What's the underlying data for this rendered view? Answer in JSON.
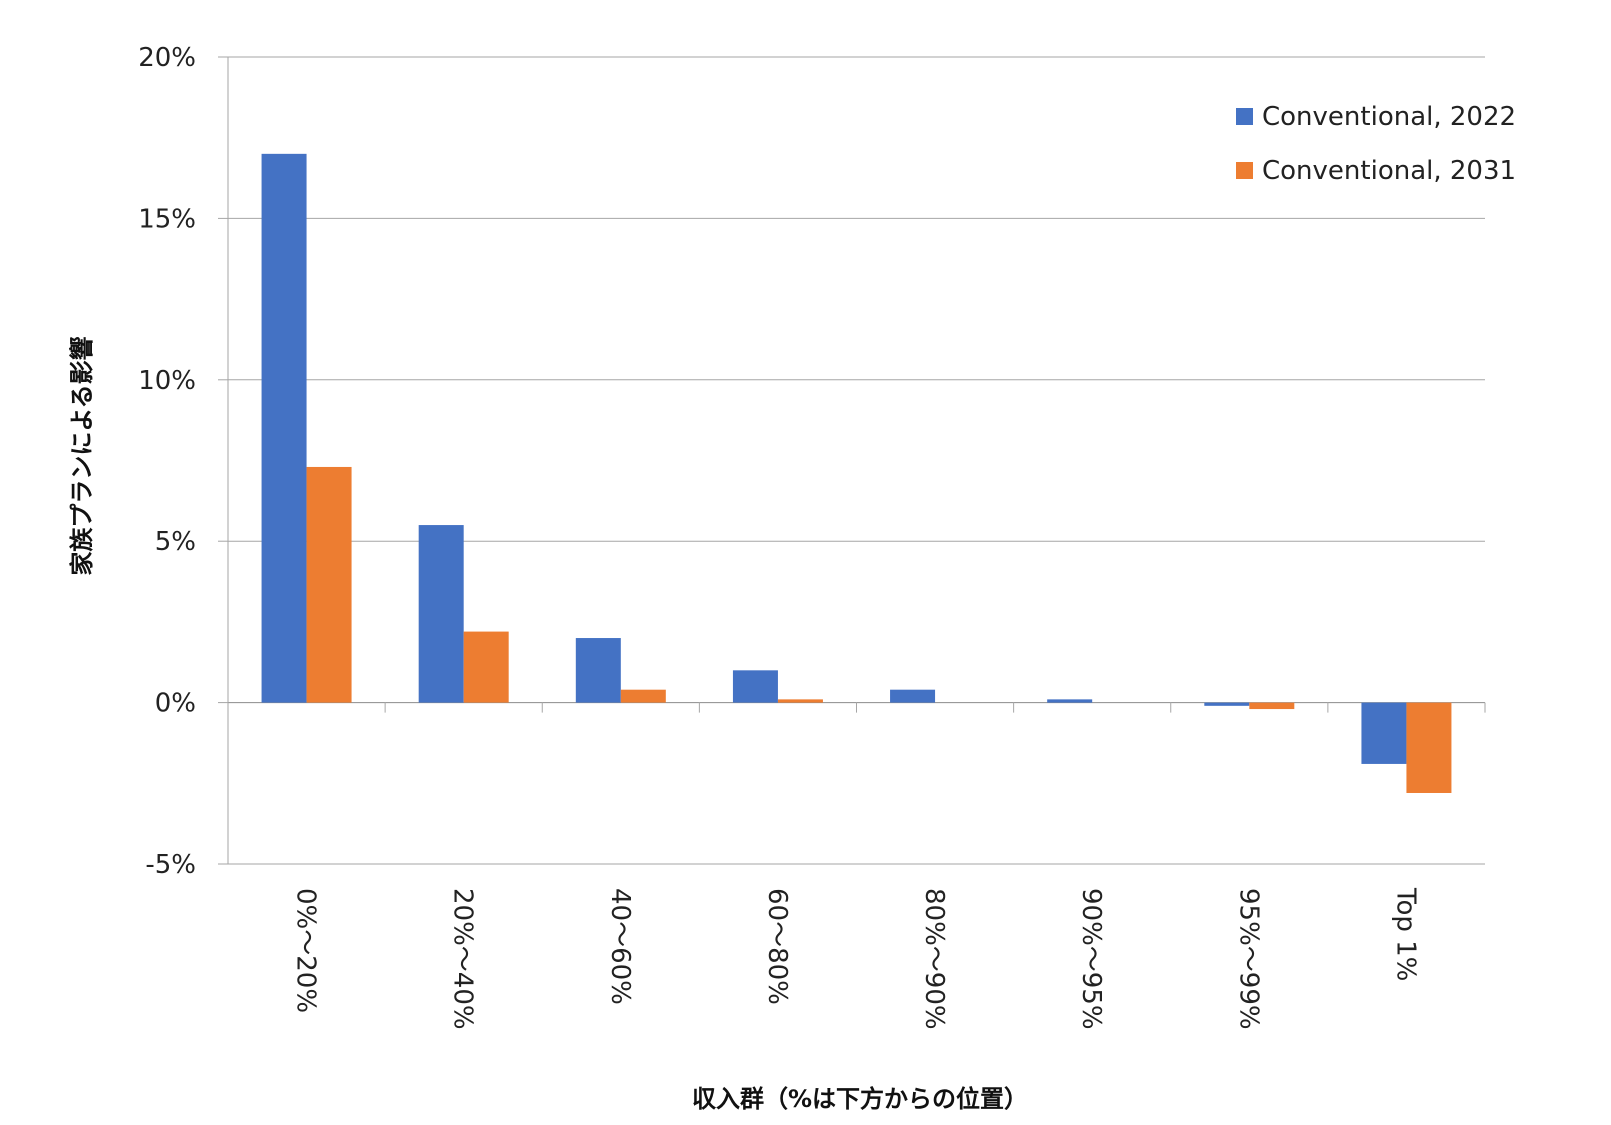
{
  "chart_data": {
    "type": "bar",
    "title": "",
    "xlabel": "収入群（%は下方からの位置）",
    "ylabel": "家族プランによる影響",
    "categories": [
      "0%～20%",
      "20%～40%",
      "40～60%",
      "60～80%",
      "80%～90%",
      "90%～95%",
      "95%～99%",
      "Top 1%"
    ],
    "ylim": [
      -5,
      20
    ],
    "yticks": [
      -5,
      0,
      5,
      10,
      15,
      20
    ],
    "ytick_labels": [
      "-5%",
      "0%",
      "5%",
      "10%",
      "15%",
      "20%"
    ],
    "grid": true,
    "legend_position": "top-right",
    "series": [
      {
        "name": "Conventional, 2022",
        "color": "#4472C4",
        "values": [
          17.0,
          5.5,
          2.0,
          1.0,
          0.4,
          0.1,
          -0.1,
          -1.9
        ]
      },
      {
        "name": "Conventional, 2031",
        "color": "#ED7D31",
        "values": [
          7.3,
          2.2,
          0.4,
          0.1,
          0.0,
          0.0,
          -0.2,
          -2.8
        ]
      }
    ]
  }
}
